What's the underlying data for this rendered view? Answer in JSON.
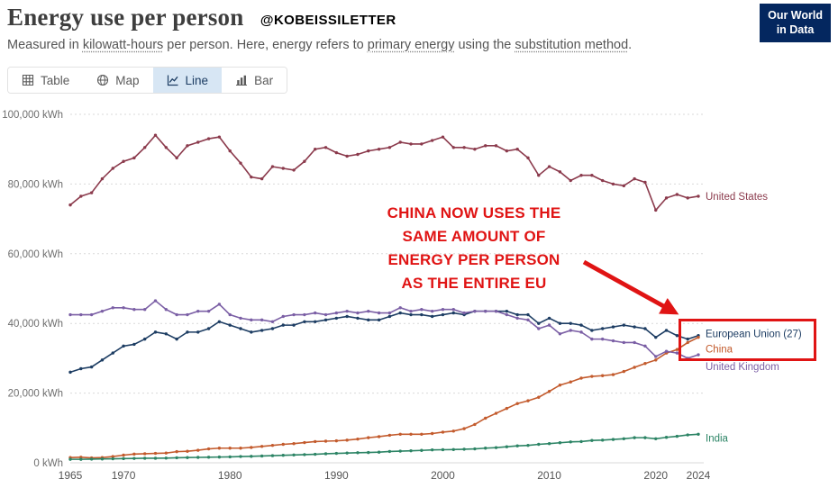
{
  "header": {
    "title": "Energy use per person",
    "watermark": "@KOBEISSILETTER",
    "logo_line1": "Our World",
    "logo_line2": "in Data"
  },
  "subtitle": {
    "part1": "Measured in ",
    "term1": "kilowatt-hours",
    "part2": " per person. Here, energy refers to ",
    "term2": "primary energy",
    "part3": " using the ",
    "term3": "substitution method",
    "part4": "."
  },
  "tabs": [
    {
      "label": "Table",
      "icon": "table-icon",
      "selected": false
    },
    {
      "label": "Map",
      "icon": "map-icon",
      "selected": false
    },
    {
      "label": "Line",
      "icon": "line-chart-icon",
      "selected": true
    },
    {
      "label": "Bar",
      "icon": "bar-chart-icon",
      "selected": false
    }
  ],
  "annotation": {
    "lines": [
      "CHINA NOW USES THE",
      "SAME AMOUNT OF",
      "ENERGY PER PERSON",
      "AS THE ENTIRE EU"
    ],
    "color": "#e01414"
  },
  "chart_data": {
    "type": "line",
    "title": "Energy use per person",
    "ylabel": "kWh per person",
    "x_range": [
      1965,
      2024
    ],
    "ylim": [
      0,
      100000
    ],
    "grid": true,
    "legend_position": "right-edge-labels",
    "yticks": [
      {
        "value": 0,
        "label": "0 kWh"
      },
      {
        "value": 20000,
        "label": "20,000 kWh"
      },
      {
        "value": 40000,
        "label": "40,000 kWh"
      },
      {
        "value": 60000,
        "label": "60,000 kWh"
      },
      {
        "value": 80000,
        "label": "80,000 kWh"
      },
      {
        "value": 100000,
        "label": "100,000 kWh"
      }
    ],
    "xticks": [
      1965,
      1970,
      1980,
      1990,
      2000,
      2010,
      2020,
      2024
    ],
    "years": [
      1965,
      1966,
      1967,
      1968,
      1969,
      1970,
      1971,
      1972,
      1973,
      1974,
      1975,
      1976,
      1977,
      1978,
      1979,
      1980,
      1981,
      1982,
      1983,
      1984,
      1985,
      1986,
      1987,
      1988,
      1989,
      1990,
      1991,
      1992,
      1993,
      1994,
      1995,
      1996,
      1997,
      1998,
      1999,
      2000,
      2001,
      2002,
      2003,
      2004,
      2005,
      2006,
      2007,
      2008,
      2009,
      2010,
      2011,
      2012,
      2013,
      2014,
      2015,
      2016,
      2017,
      2018,
      2019,
      2020,
      2021,
      2022,
      2023,
      2024
    ],
    "series": [
      {
        "name": "United States",
        "color": "#8b3a4c",
        "label_dy": 0,
        "values": [
          74000,
          76500,
          77500,
          81500,
          84500,
          86500,
          87500,
          90500,
          94000,
          90500,
          87500,
          91000,
          92000,
          93000,
          93500,
          89500,
          86000,
          82000,
          81500,
          85000,
          84500,
          84000,
          86500,
          90000,
          90500,
          89000,
          88000,
          88500,
          89500,
          90000,
          90500,
          92000,
          91500,
          91500,
          92500,
          93500,
          90500,
          90500,
          90000,
          91000,
          91000,
          89500,
          90000,
          87500,
          82500,
          85000,
          83500,
          81000,
          82500,
          82500,
          81000,
          80000,
          79500,
          81500,
          80500,
          72500,
          76000,
          77000,
          76000,
          76500
        ]
      },
      {
        "name": "European Union (27)",
        "color": "#1d3d63",
        "label_dy": -2,
        "values": [
          26000,
          27000,
          27500,
          29500,
          31500,
          33500,
          34000,
          35500,
          37500,
          37000,
          35500,
          37500,
          37500,
          38500,
          40500,
          39500,
          38500,
          37500,
          38000,
          38500,
          39500,
          39500,
          40500,
          40500,
          41000,
          41500,
          42000,
          41500,
          41000,
          41000,
          42000,
          43000,
          42500,
          42500,
          42000,
          42500,
          43000,
          42500,
          43500,
          43500,
          43500,
          43500,
          42500,
          42500,
          40000,
          41500,
          40000,
          40000,
          39500,
          38000,
          38500,
          39000,
          39500,
          39000,
          38500,
          36000,
          38000,
          36500,
          35500,
          36500
        ]
      },
      {
        "name": "China",
        "color": "#c35b2d",
        "label_dy": 13,
        "values": [
          1500,
          1600,
          1400,
          1500,
          1800,
          2200,
          2500,
          2600,
          2700,
          2800,
          3200,
          3300,
          3600,
          4000,
          4200,
          4200,
          4200,
          4400,
          4700,
          5000,
          5300,
          5500,
          5800,
          6100,
          6200,
          6300,
          6500,
          6800,
          7200,
          7500,
          7900,
          8200,
          8200,
          8200,
          8400,
          8800,
          9100,
          9800,
          11000,
          12800,
          14200,
          15600,
          17000,
          17800,
          18800,
          20500,
          22300,
          23200,
          24300,
          24800,
          25000,
          25300,
          26200,
          27400,
          28500,
          29500,
          31500,
          32500,
          34500,
          36000
        ]
      },
      {
        "name": "United Kingdom",
        "color": "#7b5fa5",
        "label_dy": 13,
        "values": [
          42500,
          42500,
          42500,
          43500,
          44500,
          44500,
          44000,
          44000,
          46500,
          44000,
          42500,
          42500,
          43500,
          43500,
          45500,
          42500,
          41500,
          41000,
          41000,
          40500,
          42000,
          42500,
          42500,
          43000,
          42500,
          43000,
          43500,
          43000,
          43500,
          43000,
          43000,
          44500,
          43500,
          44000,
          43500,
          44000,
          44000,
          43000,
          43500,
          43500,
          43500,
          42500,
          41500,
          41000,
          38500,
          39500,
          37000,
          38000,
          37500,
          35500,
          35500,
          35000,
          34500,
          34500,
          33500,
          30500,
          32000,
          31500,
          30000,
          31000
        ]
      },
      {
        "name": "India",
        "color": "#2c8465",
        "label_dy": 4,
        "values": [
          1000,
          1000,
          1050,
          1100,
          1150,
          1200,
          1250,
          1300,
          1300,
          1350,
          1450,
          1500,
          1550,
          1600,
          1650,
          1700,
          1800,
          1850,
          1950,
          2050,
          2150,
          2250,
          2350,
          2450,
          2600,
          2700,
          2800,
          2900,
          2950,
          3050,
          3250,
          3350,
          3450,
          3550,
          3700,
          3750,
          3800,
          3900,
          4000,
          4200,
          4350,
          4600,
          4850,
          5000,
          5300,
          5500,
          5750,
          6000,
          6100,
          6400,
          6500,
          6700,
          6900,
          7200,
          7200,
          6900,
          7300,
          7600,
          8000,
          8200
        ]
      }
    ]
  }
}
